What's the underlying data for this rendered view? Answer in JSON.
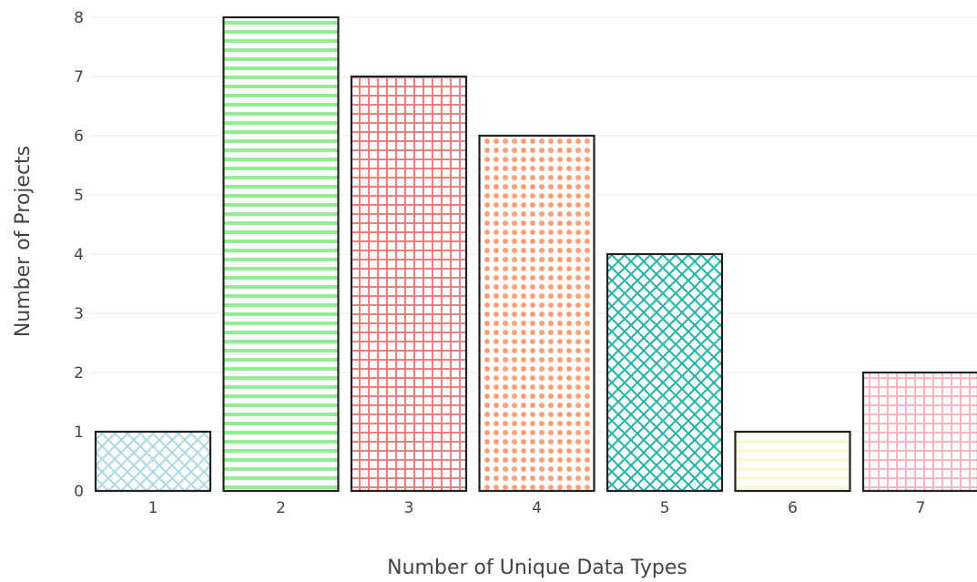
{
  "chart_data": {
    "type": "bar",
    "xlabel": "Number of Unique Data Types",
    "ylabel": "Number of Projects",
    "categories": [
      "1",
      "2",
      "3",
      "4",
      "5",
      "6",
      "7"
    ],
    "values": [
      1,
      8,
      7,
      6,
      4,
      1,
      2
    ],
    "ylim": [
      0,
      8
    ],
    "yticks": [
      "0",
      "1",
      "2",
      "3",
      "4",
      "5",
      "6",
      "7",
      "8"
    ],
    "grid": "horizontal",
    "bars": [
      {
        "pattern": "crosshatch",
        "color": "#add8e6"
      },
      {
        "pattern": "horizontal-lines",
        "color": "#90ee90"
      },
      {
        "pattern": "grid",
        "color": "#f08080"
      },
      {
        "pattern": "dots",
        "color": "#ffa07a"
      },
      {
        "pattern": "crosshatch",
        "color": "#20b2aa"
      },
      {
        "pattern": "horizontal-lines",
        "color": "#fafad2"
      },
      {
        "pattern": "grid",
        "color": "#ffb6c1"
      }
    ]
  }
}
